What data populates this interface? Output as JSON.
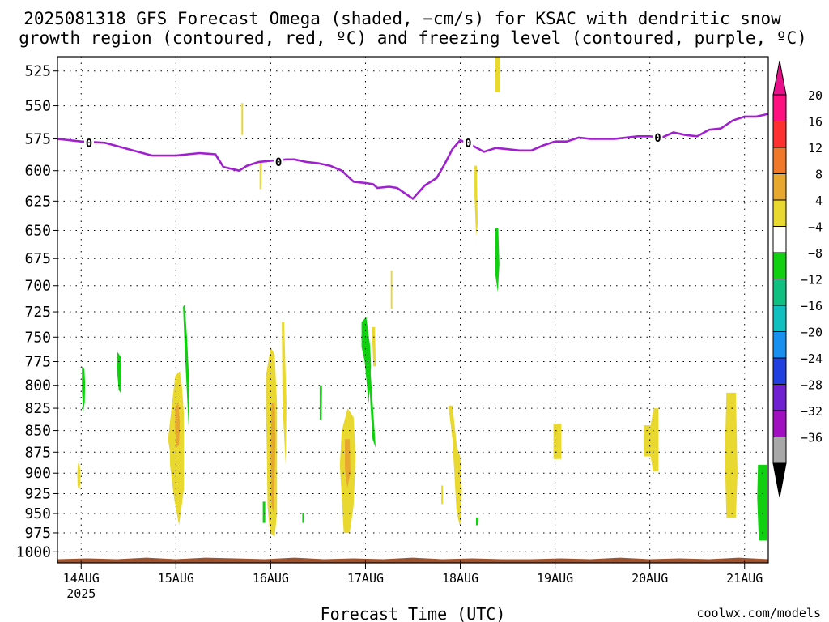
{
  "chart_data": {
    "type": "heatmap",
    "title_line1": "2025081318 GFS Forecast Omega (shaded, −cm/s) for KSAC with dendritic snow",
    "title_line2": "growth region (contoured, red, ºC) and freezing level (contoured, purple, ºC)",
    "xlabel": "Forecast Time (UTC)",
    "ylabel": "",
    "credit": "coolwx.com/models",
    "x_ticks": [
      "14AUG",
      "15AUG",
      "16AUG",
      "17AUG",
      "18AUG",
      "19AUG",
      "20AUG",
      "21AUG"
    ],
    "x_tick_hours": [
      6,
      30,
      54,
      78,
      102,
      126,
      150,
      174
    ],
    "x_year_label": "2025",
    "x_range_hours": [
      0,
      180
    ],
    "y_ticks": [
      525,
      550,
      575,
      600,
      625,
      650,
      675,
      700,
      725,
      750,
      775,
      800,
      825,
      850,
      875,
      900,
      925,
      950,
      975,
      1000
    ],
    "y_range_hpa": [
      515,
      1015
    ],
    "y_scale": "log-pressure",
    "grid": true,
    "colorbar": {
      "labels": [
        "20",
        "16",
        "12",
        "8",
        "4",
        "−4",
        "−8",
        "−12",
        "−16",
        "−20",
        "−24",
        "−28",
        "−32",
        "−36"
      ],
      "label_values": [
        20,
        16,
        12,
        8,
        4,
        -4,
        -8,
        -12,
        -16,
        -20,
        -24,
        -28,
        -32,
        -36
      ],
      "bins": [
        {
          "lo": 20,
          "hi": 24,
          "color": "#ff1080"
        },
        {
          "lo": 16,
          "hi": 20,
          "color": "#ff3030"
        },
        {
          "lo": 12,
          "hi": 16,
          "color": "#f07828"
        },
        {
          "lo": 8,
          "hi": 12,
          "color": "#e8a830"
        },
        {
          "lo": 4,
          "hi": 8,
          "color": "#e8d830"
        },
        {
          "lo": -4,
          "hi": 4,
          "color": "#ffffff"
        },
        {
          "lo": -8,
          "hi": -4,
          "color": "#10d010"
        },
        {
          "lo": -12,
          "hi": -8,
          "color": "#10c080"
        },
        {
          "lo": -16,
          "hi": -12,
          "color": "#10c0c0"
        },
        {
          "lo": -20,
          "hi": -16,
          "color": "#1890f0"
        },
        {
          "lo": -24,
          "hi": -20,
          "color": "#2040e0"
        },
        {
          "lo": -28,
          "hi": -24,
          "color": "#7020d0"
        },
        {
          "lo": -32,
          "hi": -28,
          "color": "#a010c0"
        },
        {
          "lo": -36,
          "hi": -32,
          "color": "#a8a8a8"
        }
      ],
      "top_arrow_color": "#e8108a",
      "bottom_arrow_color": "#000000"
    },
    "colors": {
      "freezing_level": "#a020d0",
      "terrain": "#a0522d",
      "yellow": "#e8d830",
      "orange": "#e8a830",
      "green": "#10d010",
      "credit": "#e03030"
    },
    "freezing_level": {
      "contour_label": "0",
      "label_points": [
        {
          "h": 8,
          "p": 578
        },
        {
          "h": 56,
          "p": 593
        },
        {
          "h": 104,
          "p": 578
        },
        {
          "h": 152,
          "p": 574
        }
      ],
      "h": [
        0,
        6,
        12,
        18,
        24,
        30,
        33,
        36,
        40,
        42,
        46,
        48,
        51,
        54,
        58,
        60,
        63,
        66,
        69,
        72,
        75,
        78,
        80,
        81,
        84,
        86,
        90,
        93,
        96,
        98,
        100,
        102,
        105,
        108,
        111,
        114,
        117,
        120,
        123,
        126,
        129,
        132,
        135,
        138,
        141,
        144,
        147,
        150,
        153,
        156,
        159,
        162,
        165,
        168,
        171,
        174,
        177,
        180
      ],
      "p": [
        575,
        577,
        578,
        583,
        588,
        588,
        587,
        586,
        587,
        597,
        600,
        596,
        593,
        592,
        591,
        591,
        593,
        594,
        596,
        600,
        609,
        610,
        611,
        614,
        613,
        614,
        623,
        612,
        606,
        595,
        583,
        576,
        580,
        585,
        582,
        583,
        584,
        584,
        580,
        577,
        577,
        574,
        575,
        575,
        575,
        574,
        573,
        573,
        574,
        570,
        572,
        573,
        568,
        567,
        561,
        558,
        558,
        556
      ]
    },
    "terrain_band": {
      "top_p": [
        1010,
        1009,
        1010,
        1008,
        1010,
        1008,
        1009,
        1010,
        1008,
        1010,
        1009,
        1010,
        1008,
        1010,
        1009,
        1010,
        1010,
        1009,
        1010,
        1008,
        1010,
        1009,
        1010,
        1008,
        1010
      ],
      "top_h": [
        0,
        7.5,
        15,
        22.5,
        30,
        37.5,
        45,
        52.5,
        60,
        67.5,
        75,
        82.5,
        90,
        97.5,
        105,
        112.5,
        120,
        127.5,
        135,
        142.5,
        150,
        157.5,
        165,
        172.5,
        180
      ],
      "bottom_p": 1015
    },
    "omega_regions": [
      {
        "bin": 4,
        "h": [
          5.2,
          5.6,
          5.8,
          5.8,
          5.5,
          5.1,
          5.0
        ],
        "p": [
          888,
          890,
          898,
          912,
          922,
          915,
          900
        ]
      },
      {
        "bin": 6,
        "h": [
          6.2,
          6.8,
          7.0,
          6.9,
          6.5,
          6.2
        ],
        "p": [
          780,
          782,
          798,
          818,
          830,
          805
        ]
      },
      {
        "bin": 6,
        "h": [
          15.2,
          16.0,
          16.2,
          16.0,
          15.5,
          15.0
        ],
        "p": [
          765,
          770,
          790,
          808,
          805,
          780
        ]
      },
      {
        "bin": 4,
        "h": [
          28.0,
          29.8,
          31.0,
          31.5,
          32.0,
          32.0,
          31.2,
          30.8,
          29.5,
          28.5,
          28.5,
          28.0
        ],
        "p": [
          860,
          790,
          785,
          800,
          830,
          920,
          950,
          965,
          930,
          890,
          875,
          860
        ]
      },
      {
        "bin": 3,
        "h": [
          29.8,
          30.6,
          31.0,
          30.8,
          30.2,
          29.8
        ],
        "p": [
          825,
          818,
          840,
          865,
          870,
          848
        ]
      },
      {
        "bin": 6,
        "h": [
          31.8,
          32.2,
          32.8,
          33.4,
          33.2,
          32.8,
          32.2
        ],
        "p": [
          720,
          718,
          750,
          800,
          845,
          810,
          760
        ]
      },
      {
        "bin": 4,
        "h": [
          46.6,
          47.0,
          47.0,
          46.6
        ],
        "p": [
          548,
          548,
          572,
          572
        ]
      },
      {
        "bin": 4,
        "h": [
          51.2,
          51.8,
          51.6,
          51.2
        ],
        "p": [
          593,
          593,
          615,
          615
        ]
      },
      {
        "bin": 4,
        "h": [
          52.8,
          54.0,
          55.0,
          55.6,
          55.6,
          55.0,
          53.8,
          53.2,
          53.0,
          52.8
        ],
        "p": [
          790,
          760,
          768,
          820,
          950,
          980,
          975,
          940,
          870,
          825
        ]
      },
      {
        "bin": 3,
        "h": [
          54.2,
          55.0,
          55.2,
          54.8,
          54.2,
          54.0
        ],
        "p": [
          820,
          818,
          860,
          950,
          940,
          880
        ]
      },
      {
        "bin": 6,
        "h": [
          52.0,
          52.6,
          52.6,
          52.0
        ],
        "p": [
          935,
          935,
          962,
          962
        ]
      },
      {
        "bin": 4,
        "h": [
          56.8,
          57.4,
          58.0,
          57.8,
          57.0
        ],
        "p": [
          735,
          735,
          820,
          890,
          820
        ]
      },
      {
        "bin": 6,
        "h": [
          62.0,
          62.5,
          62.4,
          62.0
        ],
        "p": [
          950,
          950,
          962,
          962
        ]
      },
      {
        "bin": 6,
        "h": [
          66.4,
          67.0,
          66.9,
          66.4
        ],
        "p": [
          800,
          800,
          838,
          838
        ]
      },
      {
        "bin": 4,
        "h": [
          72.0,
          73.5,
          75.0,
          75.5,
          75.0,
          74.0,
          72.5,
          72.0,
          71.5
        ],
        "p": [
          850,
          825,
          835,
          880,
          940,
          975,
          975,
          930,
          890
        ]
      },
      {
        "bin": 3,
        "h": [
          72.8,
          74.0,
          74.2,
          73.4,
          72.8
        ],
        "p": [
          860,
          860,
          900,
          918,
          895
        ]
      },
      {
        "bin": 6,
        "h": [
          77.0,
          78.2,
          79.2,
          79.4,
          78.8,
          77.8,
          77.0
        ],
        "p": [
          735,
          730,
          760,
          780,
          820,
          775,
          760
        ]
      },
      {
        "bin": 6,
        "h": [
          78.6,
          79.2,
          80.6,
          79.8
        ],
        "p": [
          775,
          780,
          870,
          860
        ]
      },
      {
        "bin": 4,
        "h": [
          79.6,
          80.4,
          80.6,
          80.0
        ],
        "p": [
          740,
          740,
          780,
          780
        ]
      },
      {
        "bin": 4,
        "h": [
          84.4,
          84.8,
          84.8,
          84.4
        ],
        "p": [
          686,
          686,
          722,
          722
        ]
      },
      {
        "bin": 4,
        "h": [
          99.0,
          100.0,
          101.2,
          102.0,
          102.4,
          102.2,
          101.8,
          101.0,
          100.5,
          100.0
        ],
        "p": [
          822,
          822,
          870,
          880,
          920,
          960,
          965,
          945,
          900,
          860
        ]
      },
      {
        "bin": 4,
        "h": [
          97.2,
          97.6,
          97.6,
          97.2
        ],
        "p": [
          915,
          915,
          938,
          938
        ]
      },
      {
        "bin": 6,
        "h": [
          106.0,
          106.6,
          106.4,
          106.0
        ],
        "p": [
          955,
          955,
          965,
          965
        ]
      },
      {
        "bin": 4,
        "h": [
          105.6,
          106.2,
          106.4,
          106.0,
          105.6
        ],
        "p": [
          596,
          596,
          645,
          655,
          620
        ]
      },
      {
        "bin": 6,
        "h": [
          110.8,
          111.6,
          111.9,
          111.5,
          110.9
        ],
        "p": [
          648,
          648,
          680,
          706,
          690
        ]
      },
      {
        "bin": 4,
        "h": [
          110.8,
          112.0,
          112.0,
          110.8
        ],
        "p": [
          515,
          515,
          540,
          540
        ]
      },
      {
        "bin": 4,
        "h": [
          125.6,
          127.6,
          127.6,
          125.6
        ],
        "p": [
          842,
          842,
          883,
          883
        ]
      },
      {
        "bin": 4,
        "h": [
          148.4,
          150.2,
          151.0,
          152.2,
          152.2,
          150.8,
          150.2,
          148.4
        ],
        "p": [
          844,
          844,
          825,
          825,
          898,
          898,
          880,
          880
        ]
      },
      {
        "bin": 4,
        "h": [
          169.4,
          171.8,
          172.2,
          171.8,
          169.4,
          169.0
        ],
        "p": [
          808,
          808,
          900,
          955,
          955,
          880
        ]
      },
      {
        "bin": 6,
        "h": [
          177.4,
          179.6,
          179.6,
          177.6,
          177.2
        ],
        "p": [
          890,
          890,
          985,
          985,
          930
        ]
      }
    ]
  }
}
